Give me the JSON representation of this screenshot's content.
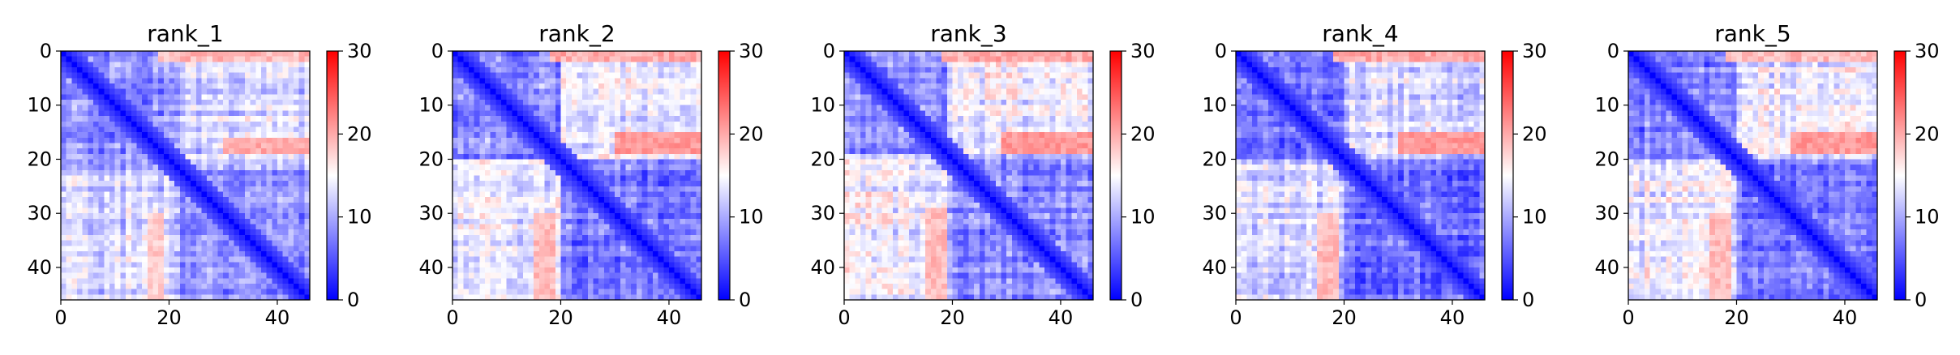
{
  "chart_data": [
    {
      "type": "heatmap",
      "title": "rank_1",
      "xlim": [
        0,
        46
      ],
      "ylim": [
        46,
        0
      ],
      "xticks": [
        0,
        20,
        40
      ],
      "yticks": [
        0,
        10,
        20,
        30,
        40
      ],
      "colorbar": {
        "min": 0,
        "max": 30,
        "ticks": [
          0,
          10,
          20,
          30
        ]
      },
      "colormap": "bwr",
      "n": 46,
      "bands": [
        [
          0,
          22
        ],
        [
          22,
          46
        ]
      ],
      "base_within": 8,
      "base_between": 12,
      "hot_rows": [
        [
          16,
          19
        ]
      ],
      "hot_cols": [
        [
          30,
          46
        ]
      ],
      "hot_value": 20,
      "top_value": 19,
      "seed": 1
    },
    {
      "type": "heatmap",
      "title": "rank_2",
      "xlim": [
        0,
        46
      ],
      "ylim": [
        46,
        0
      ],
      "xticks": [
        0,
        20,
        40
      ],
      "yticks": [
        0,
        10,
        20,
        30,
        40
      ],
      "colorbar": {
        "min": 0,
        "max": 30,
        "ticks": [
          0,
          10,
          20,
          30
        ]
      },
      "colormap": "bwr",
      "n": 46,
      "bands": [
        [
          0,
          20
        ],
        [
          20,
          46
        ]
      ],
      "base_within": 8,
      "base_between": 14,
      "hot_rows": [
        [
          15,
          19
        ]
      ],
      "hot_cols": [
        [
          30,
          46
        ]
      ],
      "hot_value": 21,
      "top_value": 20,
      "seed": 2
    },
    {
      "type": "heatmap",
      "title": "rank_3",
      "xlim": [
        0,
        46
      ],
      "ylim": [
        46,
        0
      ],
      "xticks": [
        0,
        20,
        40
      ],
      "yticks": [
        0,
        10,
        20,
        30,
        40
      ],
      "colorbar": {
        "min": 0,
        "max": 30,
        "ticks": [
          0,
          10,
          20,
          30
        ]
      },
      "colormap": "bwr",
      "n": 46,
      "bands": [
        [
          0,
          19
        ],
        [
          19,
          46
        ]
      ],
      "base_within": 8,
      "base_between": 14,
      "hot_rows": [
        [
          15,
          19
        ]
      ],
      "hot_cols": [
        [
          29,
          46
        ]
      ],
      "hot_value": 21,
      "top_value": 20,
      "seed": 3
    },
    {
      "type": "heatmap",
      "title": "rank_4",
      "xlim": [
        0,
        46
      ],
      "ylim": [
        46,
        0
      ],
      "xticks": [
        0,
        20,
        40
      ],
      "yticks": [
        0,
        10,
        20,
        30,
        40
      ],
      "colorbar": {
        "min": 0,
        "max": 30,
        "ticks": [
          0,
          10,
          20,
          30
        ]
      },
      "colormap": "bwr",
      "n": 46,
      "bands": [
        [
          0,
          20
        ],
        [
          20,
          46
        ]
      ],
      "base_within": 7,
      "base_between": 13,
      "hot_rows": [
        [
          15,
          19
        ]
      ],
      "hot_cols": [
        [
          30,
          46
        ]
      ],
      "hot_value": 21,
      "top_value": 20,
      "seed": 4
    },
    {
      "type": "heatmap",
      "title": "rank_5",
      "xlim": [
        0,
        46
      ],
      "ylim": [
        46,
        0
      ],
      "xticks": [
        0,
        20,
        40
      ],
      "yticks": [
        0,
        10,
        20,
        30,
        40
      ],
      "colorbar": {
        "min": 0,
        "max": 30,
        "ticks": [
          0,
          10,
          20,
          30
        ]
      },
      "colormap": "bwr",
      "n": 46,
      "bands": [
        [
          0,
          20
        ],
        [
          20,
          46
        ]
      ],
      "base_within": 7,
      "base_between": 14,
      "hot_rows": [
        [
          15,
          19
        ]
      ],
      "hot_cols": [
        [
          30,
          46
        ]
      ],
      "hot_value": 21,
      "top_value": 19,
      "seed": 5
    }
  ]
}
